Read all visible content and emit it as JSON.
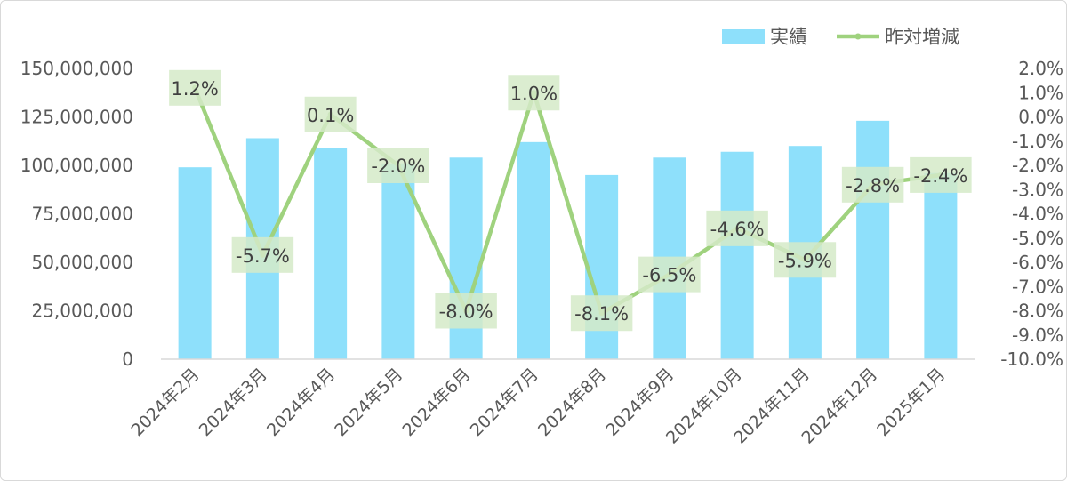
{
  "chart_data": {
    "type": "bar",
    "categories": [
      "2024年2月",
      "2024年3月",
      "2024年4月",
      "2024年5月",
      "2024年6月",
      "2024年7月",
      "2024年8月",
      "2024年9月",
      "2024年10月",
      "2024年11月",
      "2024年12月",
      "2025年1月"
    ],
    "series": [
      {
        "name": "実績",
        "type": "bar",
        "axis": "left",
        "color": "#8ee0fb",
        "values": [
          99000000,
          114000000,
          109000000,
          101000000,
          104000000,
          112000000,
          95000000,
          104000000,
          107000000,
          110000000,
          123000000,
          96000000
        ]
      },
      {
        "name": "昨対増減",
        "type": "line",
        "axis": "right",
        "color": "#9fd27e",
        "values": [
          1.2,
          -5.7,
          0.1,
          -2.0,
          -8.0,
          1.0,
          -8.1,
          -6.5,
          -4.6,
          -5.9,
          -2.8,
          -2.4
        ],
        "labels": [
          "1.2%",
          "-5.7%",
          "0.1%",
          "-2.0%",
          "-8.0%",
          "1.0%",
          "-8.1%",
          "-6.5%",
          "-4.6%",
          "-5.9%",
          "-2.8%",
          "-2.4%"
        ]
      }
    ],
    "y_left": {
      "min": 0,
      "max": 150000000,
      "ticks": [
        0,
        25000000,
        50000000,
        75000000,
        100000000,
        125000000,
        150000000
      ],
      "tick_labels": [
        "0",
        "25,000,000",
        "50,000,000",
        "75,000,000",
        "100,000,000",
        "125,000,000",
        "150,000,000"
      ]
    },
    "y_right": {
      "min": -10.0,
      "max": 2.0,
      "ticks": [
        2.0,
        1.0,
        0.0,
        -1.0,
        -2.0,
        -3.0,
        -4.0,
        -5.0,
        -6.0,
        -7.0,
        -8.0,
        -9.0,
        -10.0
      ],
      "tick_labels": [
        "2.0%",
        "1.0%",
        "0.0%",
        "-1.0%",
        "-2.0%",
        "-3.0%",
        "-4.0%",
        "-5.0%",
        "-6.0%",
        "-7.0%",
        "-8.0%",
        "-9.0%",
        "-10.0%"
      ]
    },
    "grid": false,
    "legend_position": "top-right",
    "label_box_color": "#d5eac8"
  }
}
